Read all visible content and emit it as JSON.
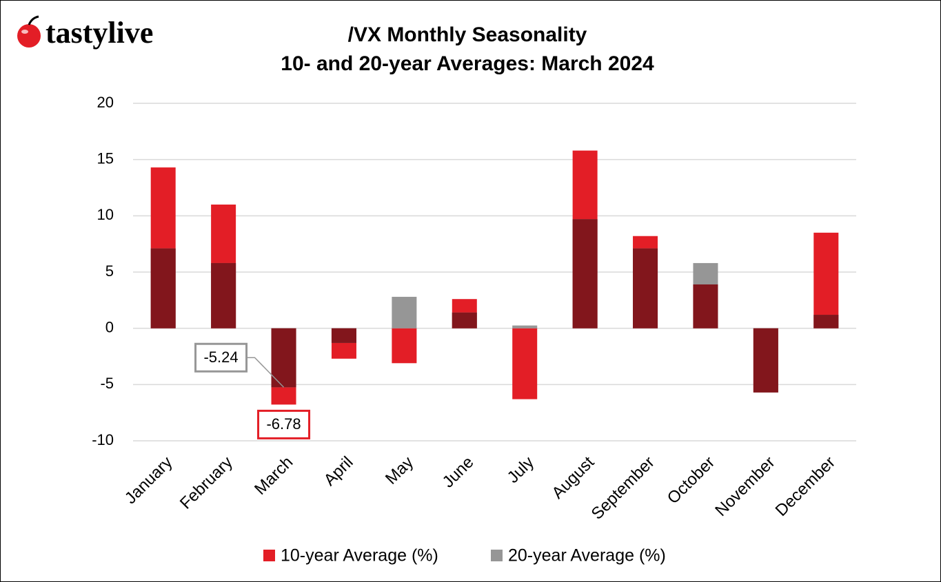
{
  "logo": "tastylive",
  "chart_data": {
    "type": "overlap-bar",
    "title": "/VX Monthly Seasonality",
    "subtitle": "10- and 20-year Averages: March 2024",
    "categories": [
      "January",
      "February",
      "March",
      "April",
      "May",
      "June",
      "July",
      "August",
      "September",
      "October",
      "November",
      "December"
    ],
    "series": [
      {
        "name": "10-year Average (%)",
        "color": "#e31e26",
        "values": [
          14.3,
          11.0,
          -6.78,
          -2.7,
          -3.1,
          2.6,
          -6.3,
          15.8,
          8.2,
          3.9,
          -5.7,
          8.5
        ],
        "value_labels": [
          null,
          null,
          "-6.78",
          null,
          null,
          null,
          null,
          null,
          null,
          null,
          null,
          null
        ]
      },
      {
        "name": "20-year Average (%)",
        "color": "#969696",
        "values": [
          7.1,
          5.8,
          -5.24,
          -1.3,
          2.8,
          1.4,
          0.25,
          9.7,
          7.1,
          5.8,
          -5.7,
          1.2
        ],
        "value_labels": [
          null,
          null,
          "-5.24",
          null,
          null,
          null,
          null,
          null,
          null,
          null,
          null,
          null
        ]
      }
    ],
    "overlap_color": "#82161c",
    "ylim": [
      -10,
      20
    ],
    "yticks": [
      -10,
      -5,
      0,
      5,
      10,
      15,
      20
    ],
    "grid": true,
    "legend": "bottom"
  }
}
